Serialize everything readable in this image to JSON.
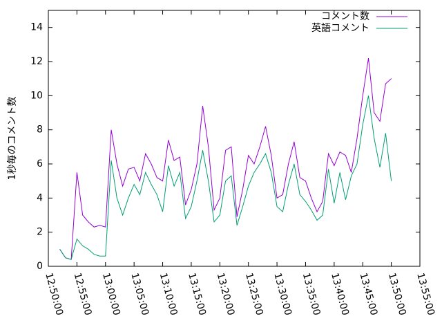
{
  "chart_data": {
    "type": "line",
    "ylabel": "1秒毎のコメント数",
    "x": [
      "12:52:00",
      "12:53:00",
      "12:54:00",
      "12:55:00",
      "12:56:00",
      "12:57:00",
      "12:58:00",
      "12:59:00",
      "13:00:00",
      "13:01:00",
      "13:02:00",
      "13:03:00",
      "13:04:00",
      "13:05:00",
      "13:06:00",
      "13:07:00",
      "13:08:00",
      "13:09:00",
      "13:10:00",
      "13:11:00",
      "13:12:00",
      "13:13:00",
      "13:14:00",
      "13:15:00",
      "13:16:00",
      "13:17:00",
      "13:18:00",
      "13:19:00",
      "13:20:00",
      "13:21:00",
      "13:22:00",
      "13:23:00",
      "13:24:00",
      "13:25:00",
      "13:26:00",
      "13:27:00",
      "13:28:00",
      "13:29:00",
      "13:30:00",
      "13:31:00",
      "13:32:00",
      "13:33:00",
      "13:34:00",
      "13:35:00",
      "13:36:00",
      "13:37:00",
      "13:38:00",
      "13:39:00",
      "13:40:00",
      "13:41:00",
      "13:42:00",
      "13:43:00",
      "13:44:00",
      "13:45:00",
      "13:46:00",
      "13:47:00",
      "13:48:00",
      "13:49:00",
      "13:50:00"
    ],
    "series": [
      {
        "name": "コメント数",
        "color": "#9400d3",
        "values": [
          1.0,
          0.5,
          0.4,
          5.5,
          3.0,
          2.6,
          2.3,
          2.4,
          2.3,
          8.0,
          6.0,
          4.7,
          5.7,
          5.8,
          5.0,
          6.6,
          6.0,
          5.2,
          5.0,
          7.4,
          6.2,
          6.4,
          3.6,
          4.5,
          6.0,
          9.4,
          7.0,
          3.3,
          4.0,
          6.8,
          7.0,
          2.9,
          4.5,
          6.5,
          6.0,
          7.0,
          8.2,
          6.5,
          4.0,
          4.2,
          6.0,
          7.3,
          5.2,
          5.0,
          4.0,
          3.2,
          3.8,
          6.6,
          5.9,
          6.7,
          6.5,
          5.5,
          7.5,
          10.0,
          12.2,
          9.0,
          8.5,
          10.7,
          11.0
        ]
      },
      {
        "name": "英語コメント",
        "color": "#009e73",
        "values": [
          1.0,
          0.5,
          0.4,
          1.6,
          1.2,
          1.0,
          0.7,
          0.6,
          0.6,
          6.2,
          4.0,
          3.0,
          4.0,
          4.8,
          4.2,
          5.5,
          4.8,
          4.2,
          3.2,
          5.9,
          4.7,
          5.5,
          2.8,
          3.5,
          5.0,
          6.8,
          5.0,
          2.6,
          3.0,
          5.0,
          5.3,
          2.4,
          3.5,
          4.7,
          5.5,
          6.0,
          6.6,
          5.5,
          3.5,
          3.2,
          4.8,
          6.0,
          4.2,
          3.8,
          3.3,
          2.7,
          3.0,
          5.7,
          3.7,
          5.5,
          3.9,
          5.3,
          6.0,
          8.3,
          10.0,
          7.5,
          5.8,
          7.8,
          5.0
        ]
      }
    ],
    "xlim": [
      "12:50:00",
      "13:55:00"
    ],
    "xticks": [
      "12:50:00",
      "12:55:00",
      "13:00:00",
      "13:05:00",
      "13:10:00",
      "13:15:00",
      "13:20:00",
      "13:25:00",
      "13:30:00",
      "13:35:00",
      "13:40:00",
      "13:45:00",
      "13:50:00",
      "13:55:00"
    ],
    "ylim": [
      0,
      15
    ],
    "yticks": [
      0,
      2,
      4,
      6,
      8,
      10,
      12,
      14
    ],
    "legend": "upper right"
  }
}
